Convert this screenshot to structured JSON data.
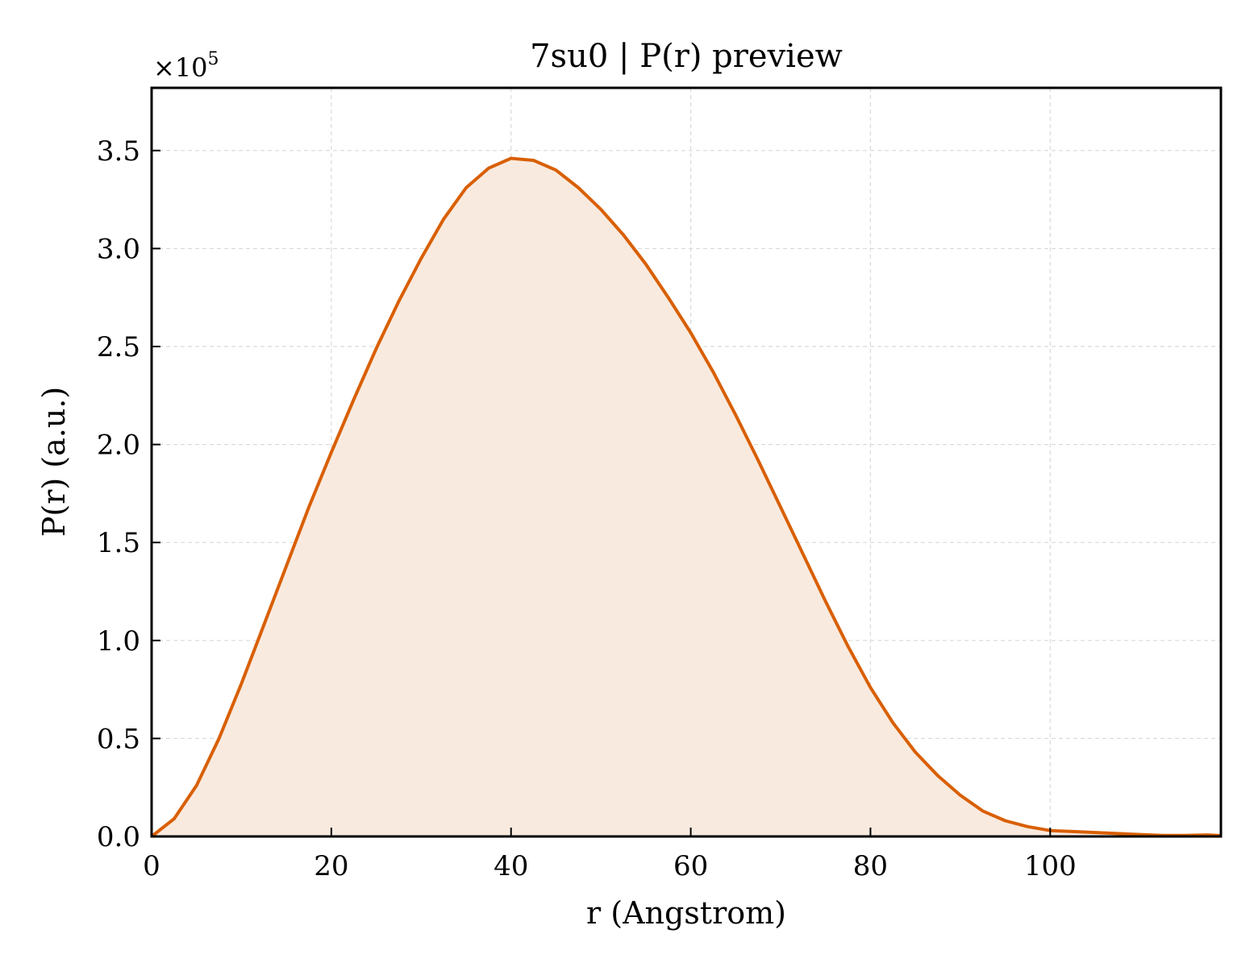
{
  "chart_data": {
    "type": "area",
    "title": "7su0 | P(r) preview",
    "xlabel": "r (Angstrom)",
    "ylabel": "P(r) (a.u.)",
    "y_multiplier_base": "×10",
    "y_multiplier_exp": "5",
    "xlim": [
      0,
      119
    ],
    "ylim": [
      0,
      3.82
    ],
    "y_scale": 100000,
    "xticks": [
      0,
      20,
      40,
      60,
      80,
      100
    ],
    "xtick_labels": [
      "0",
      "20",
      "40",
      "60",
      "80",
      "100"
    ],
    "yticks": [
      0,
      0.5,
      1.0,
      1.5,
      2.0,
      2.5,
      3.0,
      3.5
    ],
    "ytick_labels": [
      "0.0",
      "0.5",
      "1.0",
      "1.5",
      "2.0",
      "2.5",
      "3.0",
      "3.5"
    ],
    "grid": true,
    "line_color": "#d95f02",
    "fill_color": "#f9eadf",
    "x": [
      0,
      2.5,
      5,
      7.5,
      10,
      12.5,
      15,
      17.5,
      20,
      22.5,
      25,
      27.5,
      30,
      32.5,
      35,
      37.5,
      40,
      42.5,
      45,
      47.5,
      50,
      52.5,
      55,
      57.5,
      60,
      62.5,
      65,
      67.5,
      70,
      72.5,
      75,
      77.5,
      80,
      82.5,
      85,
      87.5,
      90,
      92.5,
      95,
      97.5,
      100,
      102.5,
      105,
      107.5,
      110,
      112.5,
      115,
      117.5,
      119
    ],
    "y": [
      0.0,
      0.09,
      0.26,
      0.5,
      0.78,
      1.08,
      1.38,
      1.68,
      1.96,
      2.23,
      2.49,
      2.73,
      2.95,
      3.15,
      3.31,
      3.41,
      3.46,
      3.45,
      3.4,
      3.31,
      3.2,
      3.07,
      2.92,
      2.75,
      2.57,
      2.37,
      2.15,
      1.92,
      1.68,
      1.44,
      1.2,
      0.97,
      0.76,
      0.58,
      0.43,
      0.31,
      0.21,
      0.13,
      0.08,
      0.05,
      0.03,
      0.025,
      0.02,
      0.015,
      0.01,
      0.005,
      0.005,
      0.008,
      0.004
    ]
  }
}
